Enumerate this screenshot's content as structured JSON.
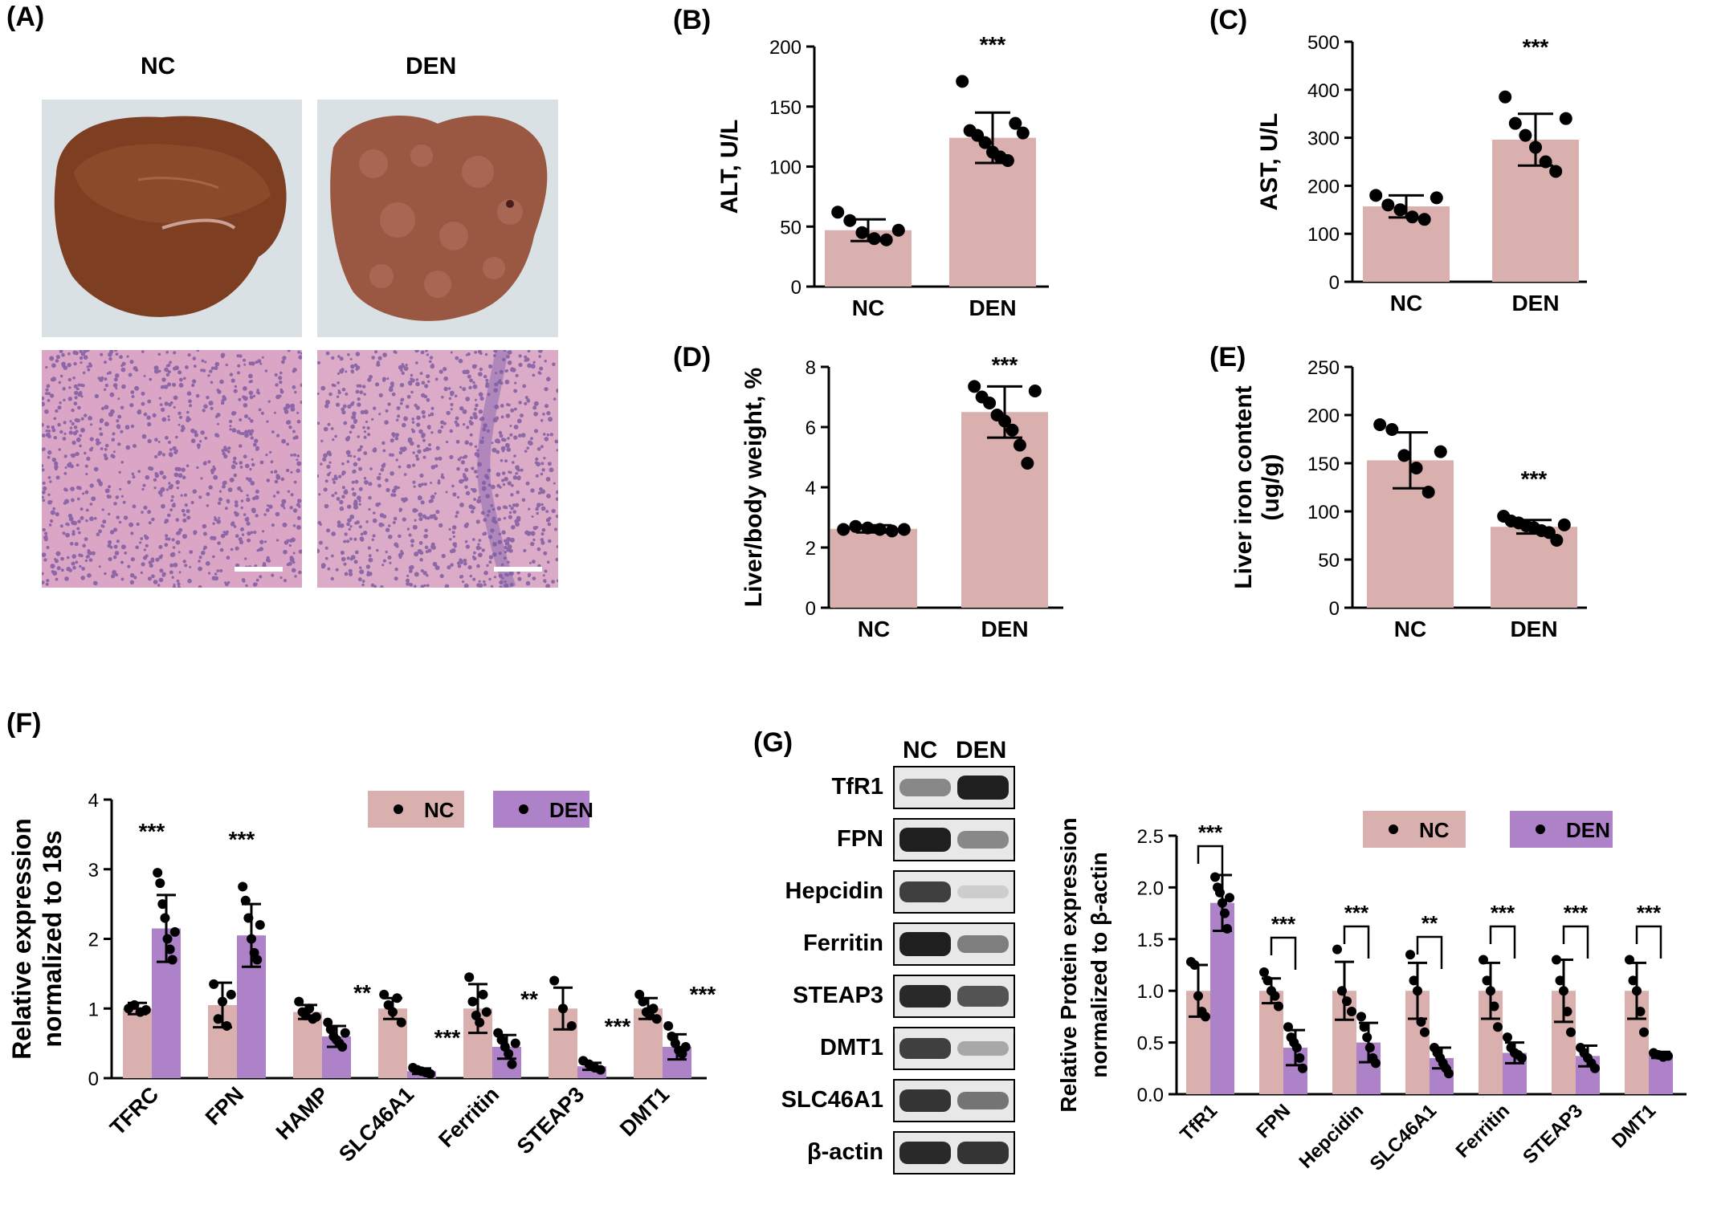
{
  "panels": {
    "A": "(A)",
    "B": "(B)",
    "C": "(C)",
    "D": "(D)",
    "E": "(E)",
    "F": "(F)",
    "G": "(G)"
  },
  "panel_a": {
    "col_labels": [
      "NC",
      "DEN"
    ],
    "colors": {
      "liver_nc": "#8a4a2a",
      "liver_den": "#9a5c48",
      "background": "#d7dfe3",
      "he_stain": "#d7a0c4",
      "nuclei": "#6b4c9a"
    }
  },
  "colors": {
    "nc": "#d9b0ae",
    "den": "#ad82c8",
    "point": "#000000"
  },
  "chart_data": [
    {
      "id": "B",
      "type": "bar",
      "categories": [
        "NC",
        "DEN"
      ],
      "ylabel": "ALT, U/L",
      "ylim": [
        0,
        200
      ],
      "yticks": [
        0,
        50,
        100,
        150,
        200
      ],
      "values": [
        47,
        124
      ],
      "errors": [
        9,
        21
      ],
      "points": [
        [
          62,
          55,
          45,
          40,
          39,
          47
        ],
        [
          171,
          130,
          126,
          120,
          112,
          108,
          105,
          136,
          128
        ]
      ],
      "significance": [
        "",
        "***"
      ]
    },
    {
      "id": "C",
      "type": "bar",
      "categories": [
        "NC",
        "DEN"
      ],
      "ylabel": "AST, U/L",
      "ylim": [
        0,
        500
      ],
      "yticks": [
        0,
        100,
        200,
        300,
        400,
        500
      ],
      "values": [
        157,
        296
      ],
      "errors": [
        23,
        54
      ],
      "points": [
        [
          180,
          160,
          150,
          135,
          130,
          175
        ],
        [
          385,
          330,
          305,
          280,
          250,
          230,
          340
        ]
      ],
      "significance": [
        "",
        "***"
      ]
    },
    {
      "id": "D",
      "type": "bar",
      "categories": [
        "NC",
        "DEN"
      ],
      "ylabel": "Liver/body weight, %",
      "ylim": [
        0,
        8
      ],
      "yticks": [
        0,
        2,
        4,
        6,
        8
      ],
      "values": [
        2.62,
        6.5
      ],
      "errors": [
        0.12,
        0.85
      ],
      "points": [
        [
          2.6,
          2.7,
          2.65,
          2.6,
          2.55,
          2.6
        ],
        [
          7.35,
          7.0,
          6.8,
          6.4,
          6.2,
          5.9,
          5.4,
          4.8,
          7.2
        ]
      ],
      "significance": [
        "",
        "***"
      ]
    },
    {
      "id": "E",
      "type": "bar",
      "categories": [
        "NC",
        "DEN"
      ],
      "ylabel": "Liver iron content (ug/g)",
      "ylim": [
        0,
        250
      ],
      "yticks": [
        0,
        50,
        100,
        150,
        200,
        250
      ],
      "values": [
        153,
        84
      ],
      "errors": [
        29,
        7
      ],
      "points": [
        [
          190,
          185,
          158,
          145,
          120,
          162
        ],
        [
          95,
          90,
          88,
          85,
          83,
          80,
          78,
          70,
          86
        ]
      ],
      "significance": [
        "",
        "***"
      ]
    },
    {
      "id": "F",
      "type": "bar",
      "categories": [
        "TFRC",
        "FPN",
        "HAMP",
        "SLC46A1",
        "Ferritin",
        "STEAP3",
        "DMT1"
      ],
      "ylabel": "Relative expression normalized to 18s",
      "ylim": [
        0,
        4
      ],
      "yticks": [
        0,
        1,
        2,
        3,
        4
      ],
      "legend": [
        "NC",
        "DEN"
      ],
      "series": [
        {
          "name": "NC",
          "values": [
            1.0,
            1.05,
            0.95,
            1.0,
            1.0,
            1.0,
            1.0
          ],
          "errors": [
            0.08,
            0.32,
            0.1,
            0.15,
            0.35,
            0.3,
            0.15
          ],
          "points": [
            [
              1.0,
              1.05,
              0.95,
              0.98
            ],
            [
              1.35,
              0.85,
              1.1,
              0.75,
              1.2
            ],
            [
              1.1,
              0.95,
              0.9,
              1.0,
              0.85,
              0.88
            ],
            [
              1.2,
              1.05,
              0.95,
              1.15,
              0.8
            ],
            [
              1.45,
              1.1,
              0.9,
              0.8,
              1.2,
              0.95
            ],
            [
              1.4,
              1.0,
              0.75
            ],
            [
              1.2,
              1.1,
              0.95,
              0.9,
              1.0,
              0.85
            ]
          ]
        },
        {
          "name": "DEN",
          "values": [
            2.15,
            2.05,
            0.6,
            0.1,
            0.45,
            0.17,
            0.45
          ],
          "errors": [
            0.48,
            0.45,
            0.15,
            0.04,
            0.17,
            0.05,
            0.18
          ],
          "points": [
            [
              2.95,
              2.8,
              2.5,
              2.3,
              2.0,
              1.85,
              1.7,
              2.1
            ],
            [
              2.75,
              2.55,
              2.3,
              2.0,
              1.8,
              1.7,
              2.2
            ],
            [
              0.8,
              0.7,
              0.6,
              0.55,
              0.5,
              0.45,
              0.65
            ],
            [
              0.15,
              0.12,
              0.1,
              0.08,
              0.06
            ],
            [
              0.65,
              0.55,
              0.45,
              0.35,
              0.2,
              0.5
            ],
            [
              0.25,
              0.2,
              0.15,
              0.12
            ],
            [
              0.75,
              0.6,
              0.5,
              0.4,
              0.35,
              0.45
            ]
          ]
        }
      ],
      "significance": [
        "***",
        "***",
        "**",
        "***",
        "**",
        "***",
        "***"
      ]
    },
    {
      "id": "G",
      "type": "bar",
      "categories": [
        "TfR1",
        "FPN",
        "Hepcidin",
        "SLC46A1",
        "Ferritin",
        "STEAP3",
        "DMT1"
      ],
      "ylabel": "Relative Protein expression normalized to β-actin",
      "ylim": [
        0,
        2.5
      ],
      "yticks": [
        "0.0",
        "0.5",
        "1.0",
        "1.5",
        "2.0",
        "2.5"
      ],
      "legend": [
        "NC",
        "DEN"
      ],
      "series": [
        {
          "name": "NC",
          "values": [
            1.0,
            1.0,
            1.0,
            1.0,
            1.0,
            1.0,
            1.0
          ],
          "errors": [
            0.25,
            0.12,
            0.28,
            0.27,
            0.27,
            0.3,
            0.27
          ],
          "points": [
            [
              1.28,
              1.25,
              0.95,
              0.8,
              0.75
            ],
            [
              1.18,
              1.1,
              1.0,
              0.95,
              0.85
            ],
            [
              1.4,
              1.0,
              0.9,
              0.8
            ],
            [
              1.35,
              1.1,
              1.0,
              0.7,
              0.6
            ],
            [
              1.3,
              1.1,
              1.0,
              0.85,
              0.65
            ],
            [
              1.3,
              1.1,
              1.0,
              0.8,
              0.6
            ],
            [
              1.3,
              1.1,
              1.0,
              0.8,
              0.6
            ]
          ]
        },
        {
          "name": "DEN",
          "values": [
            1.85,
            0.45,
            0.5,
            0.35,
            0.4,
            0.37,
            0.38
          ],
          "errors": [
            0.27,
            0.17,
            0.19,
            0.1,
            0.1,
            0.1,
            0.03
          ],
          "points": [
            [
              2.1,
              2.0,
              1.95,
              1.85,
              1.75,
              1.6,
              1.9
            ],
            [
              0.65,
              0.55,
              0.5,
              0.45,
              0.35,
              0.25
            ],
            [
              0.75,
              0.65,
              0.55,
              0.45,
              0.35,
              0.3
            ],
            [
              0.45,
              0.4,
              0.35,
              0.3,
              0.25,
              0.2
            ],
            [
              0.55,
              0.45,
              0.4,
              0.38,
              0.35
            ],
            [
              0.45,
              0.4,
              0.35,
              0.3,
              0.25
            ],
            [
              0.4,
              0.38,
              0.36,
              0.37
            ]
          ]
        }
      ],
      "significance": [
        "***",
        "***",
        "***",
        "**",
        "***",
        "***",
        "***"
      ]
    }
  ],
  "panel_g_blots": {
    "col_labels": [
      "NC",
      "DEN"
    ],
    "rows": [
      {
        "label": "TfR1",
        "nc": 0.45,
        "den": 0.95
      },
      {
        "label": "FPN",
        "nc": 0.95,
        "den": 0.45
      },
      {
        "label": "Hepcidin",
        "nc": 0.8,
        "den": 0.12
      },
      {
        "label": "Ferritin",
        "nc": 0.95,
        "den": 0.5
      },
      {
        "label": "STEAP3",
        "nc": 0.9,
        "den": 0.7
      },
      {
        "label": "DMT1",
        "nc": 0.8,
        "den": 0.3
      },
      {
        "label": "SLC46A1",
        "nc": 0.85,
        "den": 0.55
      },
      {
        "label": "β-actin",
        "nc": 0.9,
        "den": 0.85
      }
    ]
  }
}
